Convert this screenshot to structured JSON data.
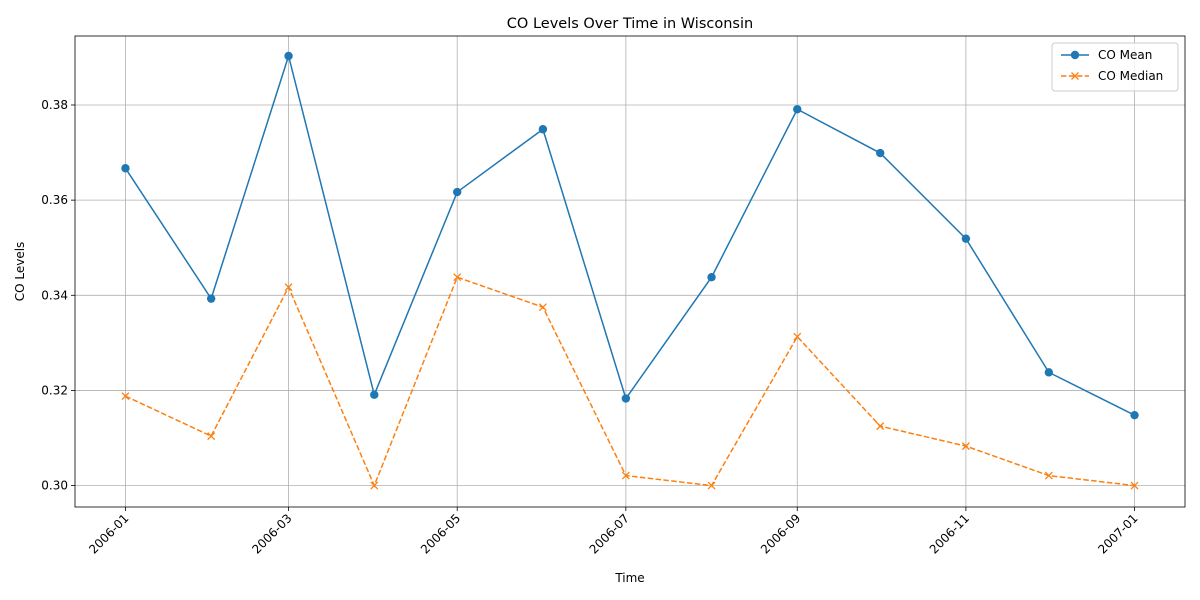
{
  "chart_data": {
    "type": "line",
    "title": "CO Levels Over Time in Wisconsin",
    "xlabel": "Time",
    "ylabel": "CO Levels",
    "x": [
      "2006-01-01",
      "2006-02-01",
      "2006-03-01",
      "2006-04-01",
      "2006-05-01",
      "2006-06-01",
      "2006-07-01",
      "2006-08-01",
      "2006-09-01",
      "2006-10-01",
      "2006-11-01",
      "2006-12-01",
      "2007-01-01"
    ],
    "xticks": [
      "2006-01",
      "2006-03",
      "2006-05",
      "2006-07",
      "2006-09",
      "2006-11",
      "2007-01"
    ],
    "yticks": [
      "0.30",
      "0.32",
      "0.34",
      "0.36",
      "0.38"
    ],
    "ylim": [
      0.2955,
      0.3945
    ],
    "grid": true,
    "legend_position": "top-right",
    "series": [
      {
        "name": "CO Mean",
        "color": "#1f77b4",
        "linestyle": "solid",
        "marker": "circle",
        "values": [
          0.3667,
          0.3393,
          0.3903,
          0.3191,
          0.3617,
          0.3749,
          0.3183,
          0.3438,
          0.3791,
          0.3699,
          0.3519,
          0.3238,
          0.3148
        ]
      },
      {
        "name": "CO Median",
        "color": "#ff7f0e",
        "linestyle": "dashed",
        "marker": "x",
        "values": [
          0.3188,
          0.3104,
          0.3417,
          0.3,
          0.3438,
          0.3375,
          0.3021,
          0.3,
          0.3313,
          0.3125,
          0.3083,
          0.3021,
          0.3
        ]
      }
    ]
  }
}
